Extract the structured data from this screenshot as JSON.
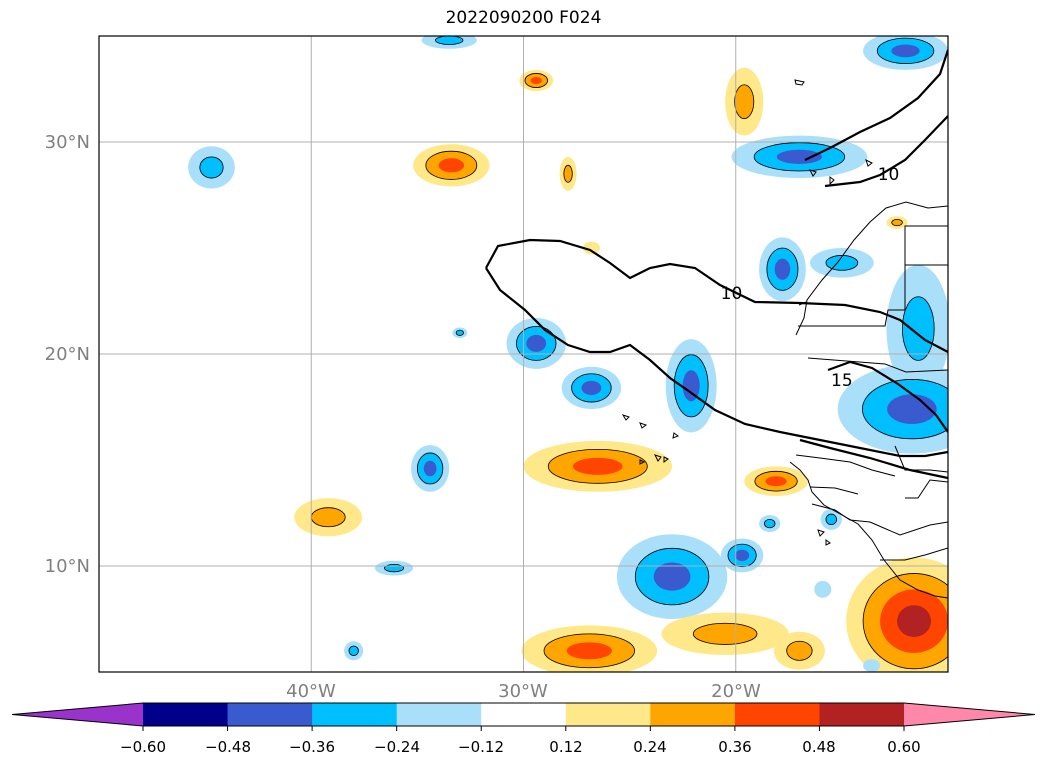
{
  "title": "2022090200 F024",
  "map": {
    "lon_range": [
      -50,
      -10
    ],
    "lat_range": [
      5,
      35
    ],
    "lat_labels": [
      {
        "lat": 30,
        "text": "30°N"
      },
      {
        "lat": 20,
        "text": "20°N"
      },
      {
        "lat": 10,
        "text": "10°N"
      }
    ],
    "lon_labels": [
      {
        "lon": -40,
        "text": "40°W"
      },
      {
        "lon": -30,
        "text": "30°W"
      },
      {
        "lon": -20,
        "text": "20°W"
      }
    ],
    "contour_labels": [
      {
        "text": "10",
        "lon": -12.8,
        "lat": 28.2
      },
      {
        "text": "10",
        "lon": -20.2,
        "lat": 22.6
      },
      {
        "text": "15",
        "lon": -15.0,
        "lat": 18.5
      }
    ]
  },
  "colorbar": {
    "colors": [
      "#9933cc",
      "#00008b",
      "#3a5bd0",
      "#00bfff",
      "#aadff9",
      "#ffffff",
      "#ffe88a",
      "#ffa500",
      "#ff4500",
      "#b22222",
      "#ff88aa"
    ],
    "ticks": [
      "−0.60",
      "−0.48",
      "−0.36",
      "−0.24",
      "−0.12",
      "0.12",
      "0.24",
      "0.36",
      "0.48",
      "0.60"
    ]
  },
  "blobs": [
    {
      "lon": -44.7,
      "lat": 28.8,
      "rx": 1.1,
      "ry": 1.0,
      "level": -2
    },
    {
      "lon": -33.5,
      "lat": 34.8,
      "rx": 1.3,
      "ry": 0.4,
      "level": -2
    },
    {
      "lon": -33.4,
      "lat": 28.9,
      "rx": 1.8,
      "ry": 1.0,
      "level": 3
    },
    {
      "lon": -29.4,
      "lat": 32.9,
      "rx": 0.8,
      "ry": 0.5,
      "level": 3
    },
    {
      "lon": -27.9,
      "lat": 28.5,
      "rx": 0.4,
      "ry": 0.8,
      "level": 2
    },
    {
      "lon": -19.6,
      "lat": 31.9,
      "rx": 0.9,
      "ry": 1.6,
      "level": 2
    },
    {
      "lon": -26.8,
      "lat": 25.0,
      "rx": 0.4,
      "ry": 0.3,
      "level": 1
    },
    {
      "lon": -17.0,
      "lat": 29.3,
      "rx": 3.2,
      "ry": 1.0,
      "level": -3
    },
    {
      "lon": -12.0,
      "lat": 34.3,
      "rx": 2.0,
      "ry": 0.9,
      "level": -3
    },
    {
      "lon": -17.8,
      "lat": 24.0,
      "rx": 1.1,
      "ry": 1.5,
      "level": -3
    },
    {
      "lon": -15.0,
      "lat": 24.3,
      "rx": 1.5,
      "ry": 0.7,
      "level": -2
    },
    {
      "lon": -11.4,
      "lat": 21.2,
      "rx": 1.5,
      "ry": 3.0,
      "level": -2
    },
    {
      "lon": -12.4,
      "lat": 26.2,
      "rx": 0.5,
      "ry": 0.3,
      "level": 2
    },
    {
      "lon": -33.0,
      "lat": 21.0,
      "rx": 0.35,
      "ry": 0.25,
      "level": -2
    },
    {
      "lon": -29.4,
      "lat": 20.5,
      "rx": 1.4,
      "ry": 1.2,
      "level": -3
    },
    {
      "lon": -26.8,
      "lat": 18.4,
      "rx": 1.4,
      "ry": 1.0,
      "level": -3
    },
    {
      "lon": -22.1,
      "lat": 18.5,
      "rx": 1.2,
      "ry": 2.2,
      "level": -3
    },
    {
      "lon": -11.7,
      "lat": 17.4,
      "rx": 3.5,
      "ry": 2.1,
      "level": -3
    },
    {
      "lon": -34.4,
      "lat": 14.6,
      "rx": 0.9,
      "ry": 1.1,
      "level": -3
    },
    {
      "lon": -26.5,
      "lat": 14.7,
      "rx": 3.5,
      "ry": 1.2,
      "level": 3
    },
    {
      "lon": -18.1,
      "lat": 14.0,
      "rx": 1.5,
      "ry": 0.7,
      "level": 3
    },
    {
      "lon": -39.2,
      "lat": 12.3,
      "rx": 1.6,
      "ry": 0.9,
      "level": 2
    },
    {
      "lon": -36.1,
      "lat": 9.9,
      "rx": 0.9,
      "ry": 0.35,
      "level": -2
    },
    {
      "lon": -18.4,
      "lat": 12.0,
      "rx": 0.5,
      "ry": 0.4,
      "level": -2
    },
    {
      "lon": -15.5,
      "lat": 12.2,
      "rx": 0.5,
      "ry": 0.5,
      "level": -2
    },
    {
      "lon": -23.0,
      "lat": 9.5,
      "rx": 2.6,
      "ry": 2.0,
      "level": -3
    },
    {
      "lon": -19.7,
      "lat": 10.5,
      "rx": 1.0,
      "ry": 0.8,
      "level": -3
    },
    {
      "lon": -15.9,
      "lat": 8.9,
      "rx": 0.4,
      "ry": 0.4,
      "level": -1
    },
    {
      "lon": -38.0,
      "lat": 6.0,
      "rx": 0.45,
      "ry": 0.45,
      "level": -2
    },
    {
      "lon": -26.9,
      "lat": 6.0,
      "rx": 3.2,
      "ry": 1.2,
      "level": 3
    },
    {
      "lon": -20.5,
      "lat": 6.8,
      "rx": 3.0,
      "ry": 1.0,
      "level": 2
    },
    {
      "lon": -17.0,
      "lat": 6.0,
      "rx": 1.2,
      "ry": 0.9,
      "level": 2
    },
    {
      "lon": -11.6,
      "lat": 7.4,
      "rx": 3.2,
      "ry": 3.0,
      "level": 4
    },
    {
      "lon": -13.6,
      "lat": 5.3,
      "rx": 0.4,
      "ry": 0.3,
      "level": -1
    }
  ]
}
